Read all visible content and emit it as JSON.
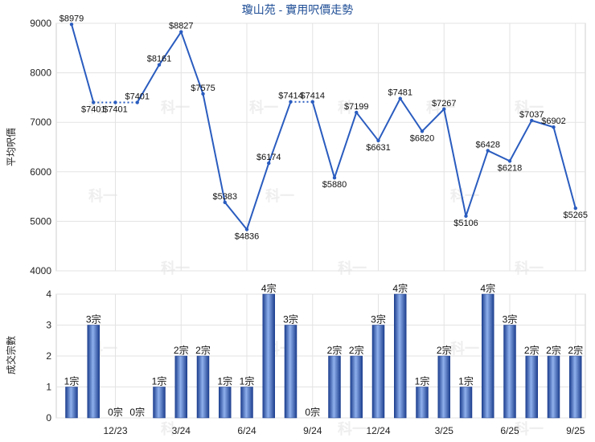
{
  "chart_data": [
    {
      "type": "line",
      "title": "瓊山苑 - 實用呎價走勢",
      "ylabel": "平均呎價",
      "ylim": [
        4000,
        9000
      ],
      "yticks": [
        4000,
        5000,
        6000,
        7000,
        8000,
        9000
      ],
      "points": [
        {
          "label": "$8979",
          "value": 8979
        },
        {
          "label": "$7401",
          "value": 7401
        },
        {
          "label": "$7401",
          "value": 7401
        },
        {
          "label": "$7401",
          "value": 7401
        },
        {
          "label": "$8161",
          "value": 8161
        },
        {
          "label": "$8827",
          "value": 8827
        },
        {
          "label": "$7575",
          "value": 7575
        },
        {
          "label": "$5383",
          "value": 5383
        },
        {
          "label": "$4836",
          "value": 4836
        },
        {
          "label": "$6174",
          "value": 6174
        },
        {
          "label": "$7414",
          "value": 7414
        },
        {
          "label": "$7414",
          "value": 7414
        },
        {
          "label": "$5880",
          "value": 5880
        },
        {
          "label": "$7199",
          "value": 7199
        },
        {
          "label": "$6631",
          "value": 6631
        },
        {
          "label": "$7481",
          "value": 7481
        },
        {
          "label": "$6820",
          "value": 6820
        },
        {
          "label": "$7267",
          "value": 7267
        },
        {
          "label": "$5106",
          "value": 5106
        },
        {
          "label": "$6428",
          "value": 6428
        },
        {
          "label": "$6218",
          "value": 6218
        },
        {
          "label": "$7037",
          "value": 7037
        },
        {
          "label": "$6902",
          "value": 6902
        },
        {
          "label": "$5265",
          "value": 5265
        }
      ],
      "dotted_segments": [
        [
          1,
          2
        ],
        [
          2,
          3
        ],
        [
          10,
          11
        ]
      ],
      "line_color": "#2a5cbf",
      "grid": true
    },
    {
      "type": "bar",
      "ylabel": "成交宗數",
      "ylim": [
        0,
        4
      ],
      "yticks": [
        0,
        1,
        2,
        3,
        4
      ],
      "bars": [
        {
          "label": "1宗",
          "value": 1
        },
        {
          "label": "3宗",
          "value": 3
        },
        {
          "label": "0宗",
          "value": 0
        },
        {
          "label": "0宗",
          "value": 0
        },
        {
          "label": "1宗",
          "value": 1
        },
        {
          "label": "2宗",
          "value": 2
        },
        {
          "label": "2宗",
          "value": 2
        },
        {
          "label": "1宗",
          "value": 1
        },
        {
          "label": "1宗",
          "value": 1
        },
        {
          "label": "4宗",
          "value": 4
        },
        {
          "label": "3宗",
          "value": 3
        },
        {
          "label": "0宗",
          "value": 0
        },
        {
          "label": "2宗",
          "value": 2
        },
        {
          "label": "2宗",
          "value": 2
        },
        {
          "label": "3宗",
          "value": 3
        },
        {
          "label": "4宗",
          "value": 4
        },
        {
          "label": "1宗",
          "value": 1
        },
        {
          "label": "2宗",
          "value": 2
        },
        {
          "label": "1宗",
          "value": 1
        },
        {
          "label": "4宗",
          "value": 4
        },
        {
          "label": "3宗",
          "value": 3
        },
        {
          "label": "2宗",
          "value": 2
        },
        {
          "label": "2宗",
          "value": 2
        },
        {
          "label": "2宗",
          "value": 2
        }
      ],
      "xticks": [
        {
          "label": "12/23",
          "index": 2
        },
        {
          "label": "3/24",
          "index": 5
        },
        {
          "label": "6/24",
          "index": 8
        },
        {
          "label": "9/24",
          "index": 11
        },
        {
          "label": "12/24",
          "index": 14
        },
        {
          "label": "3/25",
          "index": 17
        },
        {
          "label": "6/25",
          "index": 20
        },
        {
          "label": "9/25",
          "index": 23
        }
      ],
      "bar_color": "#3a66c4",
      "grid": true
    }
  ],
  "watermark": "科一"
}
